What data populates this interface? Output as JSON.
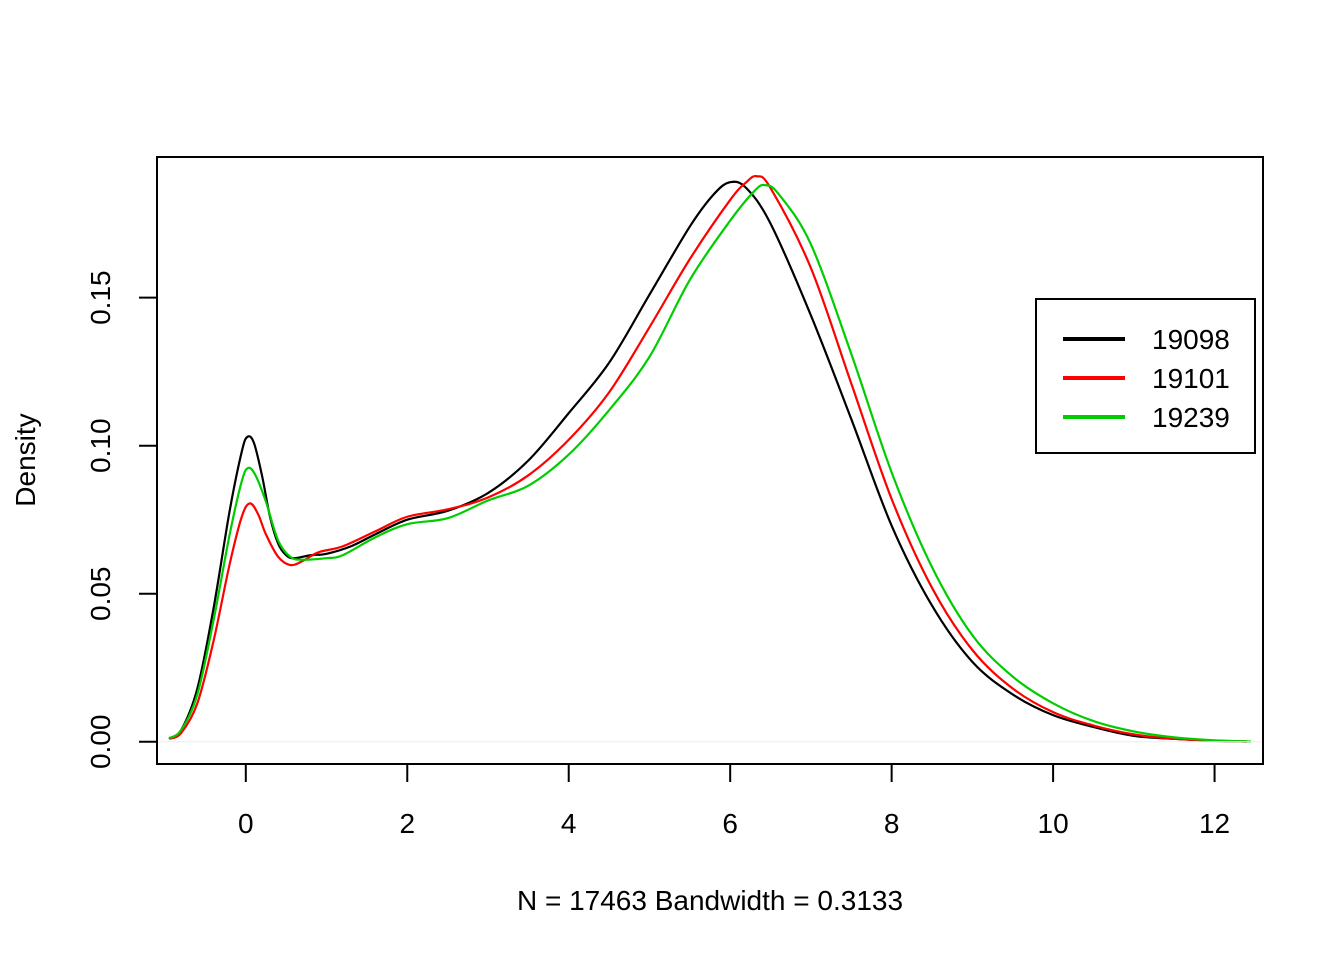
{
  "chart_data": {
    "type": "line",
    "title": "",
    "xlabel": "N = 17463   Bandwidth = 0.3133",
    "ylabel": "Density",
    "xlim": [
      -1.1,
      12.6
    ],
    "ylim": [
      -0.0075,
      0.1975
    ],
    "x_ticks": [
      0,
      2,
      4,
      6,
      8,
      10,
      12
    ],
    "x_tick_labels": [
      "0",
      "2",
      "4",
      "6",
      "8",
      "10",
      "12"
    ],
    "y_ticks": [
      0,
      0.05,
      0.1,
      0.15
    ],
    "y_tick_labels": [
      "0.00",
      "0.05",
      "0.10",
      "0.15"
    ],
    "grid": false,
    "legend_position": "right",
    "series": [
      {
        "name": "19098",
        "color": "#000000",
        "points": [
          [
            -0.95,
            0.001
          ],
          [
            -0.8,
            0.004
          ],
          [
            -0.6,
            0.018
          ],
          [
            -0.4,
            0.045
          ],
          [
            -0.2,
            0.078
          ],
          [
            -0.05,
            0.098
          ],
          [
            0.02,
            0.103
          ],
          [
            0.1,
            0.101
          ],
          [
            0.2,
            0.09
          ],
          [
            0.3,
            0.076
          ],
          [
            0.4,
            0.067
          ],
          [
            0.5,
            0.063
          ],
          [
            0.6,
            0.062
          ],
          [
            0.8,
            0.063
          ],
          [
            1.0,
            0.0635
          ],
          [
            1.3,
            0.066
          ],
          [
            1.6,
            0.07
          ],
          [
            2.0,
            0.075
          ],
          [
            2.5,
            0.078
          ],
          [
            3.0,
            0.084
          ],
          [
            3.5,
            0.095
          ],
          [
            4.0,
            0.111
          ],
          [
            4.5,
            0.128
          ],
          [
            5.0,
            0.151
          ],
          [
            5.5,
            0.174
          ],
          [
            5.8,
            0.185
          ],
          [
            6.0,
            0.189
          ],
          [
            6.2,
            0.187
          ],
          [
            6.5,
            0.175
          ],
          [
            7.0,
            0.144
          ],
          [
            7.5,
            0.109
          ],
          [
            8.0,
            0.073
          ],
          [
            8.5,
            0.046
          ],
          [
            9.0,
            0.027
          ],
          [
            9.5,
            0.016
          ],
          [
            10.0,
            0.009
          ],
          [
            10.5,
            0.005
          ],
          [
            11.0,
            0.002
          ],
          [
            11.5,
            0.001
          ],
          [
            12.0,
            0.0003
          ],
          [
            12.4,
            0.0001
          ]
        ]
      },
      {
        "name": "19101",
        "color": "#ff0000",
        "points": [
          [
            -0.95,
            0.001
          ],
          [
            -0.8,
            0.003
          ],
          [
            -0.6,
            0.013
          ],
          [
            -0.4,
            0.034
          ],
          [
            -0.2,
            0.06
          ],
          [
            -0.05,
            0.076
          ],
          [
            0.05,
            0.0805
          ],
          [
            0.15,
            0.077
          ],
          [
            0.25,
            0.07
          ],
          [
            0.4,
            0.0625
          ],
          [
            0.55,
            0.0597
          ],
          [
            0.7,
            0.061
          ],
          [
            0.9,
            0.064
          ],
          [
            1.2,
            0.066
          ],
          [
            1.6,
            0.071
          ],
          [
            2.0,
            0.076
          ],
          [
            2.5,
            0.0785
          ],
          [
            3.0,
            0.0825
          ],
          [
            3.5,
            0.09
          ],
          [
            4.0,
            0.102
          ],
          [
            4.5,
            0.118
          ],
          [
            5.0,
            0.14
          ],
          [
            5.5,
            0.163
          ],
          [
            6.0,
            0.183
          ],
          [
            6.2,
            0.189
          ],
          [
            6.33,
            0.191
          ],
          [
            6.5,
            0.187
          ],
          [
            7.0,
            0.16
          ],
          [
            7.5,
            0.121
          ],
          [
            8.0,
            0.082
          ],
          [
            8.5,
            0.052
          ],
          [
            9.0,
            0.031
          ],
          [
            9.5,
            0.018
          ],
          [
            10.0,
            0.01
          ],
          [
            10.5,
            0.0055
          ],
          [
            11.0,
            0.0025
          ],
          [
            11.5,
            0.001
          ],
          [
            12.0,
            0.0004
          ],
          [
            12.4,
            0.0001
          ]
        ]
      },
      {
        "name": "19239",
        "color": "#00cd00",
        "points": [
          [
            -0.95,
            0.0012
          ],
          [
            -0.8,
            0.004
          ],
          [
            -0.6,
            0.016
          ],
          [
            -0.4,
            0.041
          ],
          [
            -0.2,
            0.07
          ],
          [
            -0.05,
            0.088
          ],
          [
            0.03,
            0.0925
          ],
          [
            0.12,
            0.09
          ],
          [
            0.25,
            0.081
          ],
          [
            0.4,
            0.068
          ],
          [
            0.55,
            0.0625
          ],
          [
            0.7,
            0.0615
          ],
          [
            1.0,
            0.062
          ],
          [
            1.2,
            0.063
          ],
          [
            1.6,
            0.069
          ],
          [
            2.0,
            0.0735
          ],
          [
            2.5,
            0.0755
          ],
          [
            3.0,
            0.0815
          ],
          [
            3.5,
            0.0865
          ],
          [
            4.0,
            0.097
          ],
          [
            4.5,
            0.112
          ],
          [
            5.0,
            0.13
          ],
          [
            5.5,
            0.156
          ],
          [
            6.0,
            0.176
          ],
          [
            6.3,
            0.186
          ],
          [
            6.43,
            0.188
          ],
          [
            6.6,
            0.185
          ],
          [
            7.0,
            0.168
          ],
          [
            7.5,
            0.131
          ],
          [
            8.0,
            0.091
          ],
          [
            8.5,
            0.059
          ],
          [
            9.0,
            0.036
          ],
          [
            9.5,
            0.022
          ],
          [
            10.0,
            0.013
          ],
          [
            10.5,
            0.007
          ],
          [
            11.0,
            0.0035
          ],
          [
            11.5,
            0.0015
          ],
          [
            12.0,
            0.0005
          ],
          [
            12.45,
            0.0001
          ]
        ]
      }
    ]
  }
}
